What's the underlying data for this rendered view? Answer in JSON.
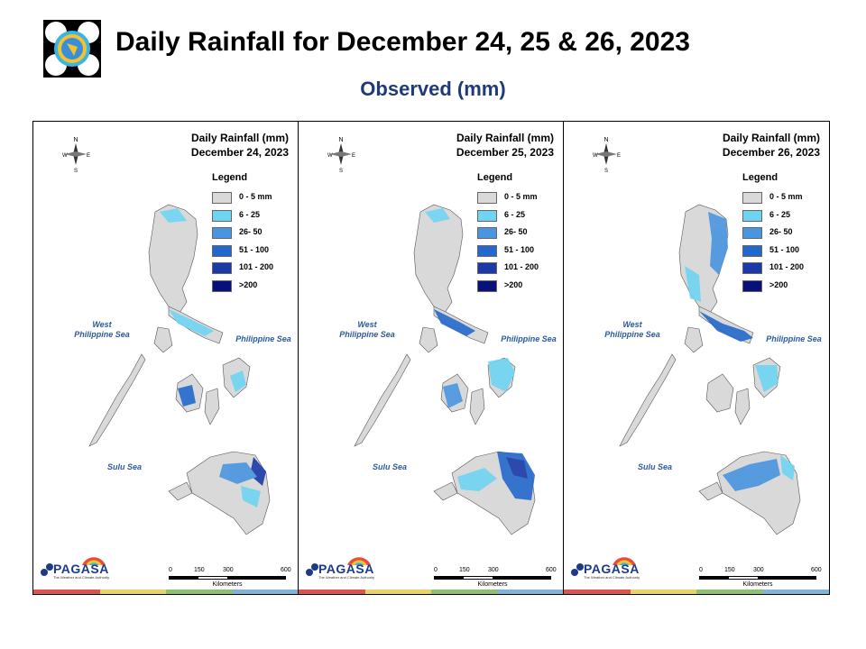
{
  "title": "Daily Rainfall for December 24, 25 & 26, 2023",
  "subtitle": "Observed (mm)",
  "logo": {
    "name": "pagasa-seal-icon"
  },
  "colors": {
    "sea_label": "#2c5aa0",
    "title_sub": "#1f3a78",
    "land": "#d9d9d9",
    "border": "#555555"
  },
  "legend": {
    "title": "Legend",
    "items": [
      {
        "label": "0 - 5 mm",
        "color": "#d9d9d9"
      },
      {
        "label": "6 - 25",
        "color": "#6fd4f2"
      },
      {
        "label": "26- 50",
        "color": "#4a95e0"
      },
      {
        "label": "51 - 100",
        "color": "#2468cc"
      },
      {
        "label": "101 - 200",
        "color": "#1b3aa8"
      },
      {
        "label": ">200",
        "color": "#08107a"
      }
    ]
  },
  "seas": {
    "west": "West\nPhilippine Sea",
    "east": "Philippine Sea",
    "sulu": "Sulu Sea"
  },
  "compass": {
    "n": "N",
    "s": "S",
    "e": "E",
    "w": "W"
  },
  "scale": {
    "ticks": [
      "0",
      "150",
      "300",
      "600"
    ],
    "unit": "Kilometers"
  },
  "branding": {
    "word": "PAGASA",
    "tagline": "The Weather and Climate Authority",
    "strip_colors": [
      "#d9534f",
      "#e8d36a",
      "#8fbf73",
      "#7fb3d9"
    ]
  },
  "panels": [
    {
      "header_title": "Daily Rainfall (mm)",
      "date": "December 24, 2023"
    },
    {
      "header_title": "Daily Rainfall (mm)",
      "date": "December 25, 2023"
    },
    {
      "header_title": "Daily Rainfall (mm)",
      "date": "December 26, 2023"
    }
  ]
}
